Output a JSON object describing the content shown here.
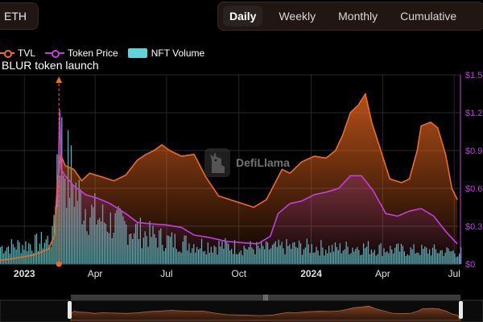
{
  "toolbar": {
    "chain": "ETH",
    "periods": [
      "Daily",
      "Weekly",
      "Monthly",
      "Cumulative"
    ],
    "active_period": "Daily"
  },
  "watermark": {
    "text": "DefiLlama"
  },
  "chart_data": {
    "type": "line",
    "title": "",
    "x_ticks": [
      {
        "label": "2023",
        "date": "2023-01-01"
      },
      {
        "label": "Apr",
        "date": "2023-04-01"
      },
      {
        "label": "Jul",
        "date": "2023-07-01"
      },
      {
        "label": "Oct",
        "date": "2023-10-01"
      },
      {
        "label": "2024",
        "date": "2024-01-01"
      },
      {
        "label": "Apr",
        "date": "2024-04-01"
      },
      {
        "label": "Jul",
        "date": "2024-07-01"
      }
    ],
    "xlim": [
      "2022-12-01",
      "2024-07-09"
    ],
    "y_right": {
      "ticks": [
        "$0",
        "$0.3",
        "$0.6",
        "$0.9",
        "$1.2",
        "$1.5"
      ],
      "values": [
        0,
        0.3,
        0.6,
        0.9,
        1.2,
        1.5
      ],
      "ylim": [
        0,
        1.5
      ]
    },
    "legend_position": "top-left",
    "series": [
      {
        "name": "TVL",
        "kind": "area",
        "color": "#f06a20",
        "axis": "hidden-left",
        "ylim": [
          0,
          1.0
        ],
        "points": [
          [
            "2022-12-01",
            0.02
          ],
          [
            "2022-12-20",
            0.03
          ],
          [
            "2023-01-15",
            0.05
          ],
          [
            "2023-02-01",
            0.08
          ],
          [
            "2023-02-08",
            0.15
          ],
          [
            "2023-02-12",
            0.42
          ],
          [
            "2023-02-16",
            0.58
          ],
          [
            "2023-02-22",
            0.52
          ],
          [
            "2023-03-05",
            0.5
          ],
          [
            "2023-03-15",
            0.44
          ],
          [
            "2023-03-25",
            0.48
          ],
          [
            "2023-04-10",
            0.46
          ],
          [
            "2023-04-25",
            0.44
          ],
          [
            "2023-05-10",
            0.47
          ],
          [
            "2023-05-25",
            0.55
          ],
          [
            "2023-06-05",
            0.58
          ],
          [
            "2023-06-15",
            0.6
          ],
          [
            "2023-06-25",
            0.63
          ],
          [
            "2023-07-05",
            0.6
          ],
          [
            "2023-07-20",
            0.57
          ],
          [
            "2023-08-05",
            0.58
          ],
          [
            "2023-08-20",
            0.46
          ],
          [
            "2023-09-05",
            0.36
          ],
          [
            "2023-09-20",
            0.34
          ],
          [
            "2023-10-05",
            0.32
          ],
          [
            "2023-10-20",
            0.3
          ],
          [
            "2023-11-05",
            0.34
          ],
          [
            "2023-11-15",
            0.42
          ],
          [
            "2023-11-25",
            0.5
          ],
          [
            "2023-12-05",
            0.48
          ],
          [
            "2023-12-20",
            0.54
          ],
          [
            "2024-01-05",
            0.57
          ],
          [
            "2024-01-20",
            0.56
          ],
          [
            "2024-02-01",
            0.6
          ],
          [
            "2024-02-10",
            0.68
          ],
          [
            "2024-02-20",
            0.8
          ],
          [
            "2024-03-01",
            0.84
          ],
          [
            "2024-03-10",
            0.9
          ],
          [
            "2024-03-18",
            0.75
          ],
          [
            "2024-03-28",
            0.62
          ],
          [
            "2024-04-10",
            0.45
          ],
          [
            "2024-04-25",
            0.43
          ],
          [
            "2024-05-05",
            0.45
          ],
          [
            "2024-05-15",
            0.6
          ],
          [
            "2024-05-20",
            0.73
          ],
          [
            "2024-06-01",
            0.75
          ],
          [
            "2024-06-10",
            0.72
          ],
          [
            "2024-06-20",
            0.58
          ],
          [
            "2024-06-28",
            0.4
          ],
          [
            "2024-07-05",
            0.34
          ]
        ]
      },
      {
        "name": "Token Price",
        "kind": "line",
        "color": "#c33fe0",
        "axis": "right",
        "points": [
          [
            "2023-02-13",
            0.45
          ],
          [
            "2023-02-14",
            0.95
          ],
          [
            "2023-02-15",
            1.22
          ],
          [
            "2023-02-17",
            0.75
          ],
          [
            "2023-02-22",
            0.7
          ],
          [
            "2023-03-05",
            0.62
          ],
          [
            "2023-03-20",
            0.55
          ],
          [
            "2023-04-05",
            0.52
          ],
          [
            "2023-04-20",
            0.48
          ],
          [
            "2023-05-10",
            0.4
          ],
          [
            "2023-05-25",
            0.33
          ],
          [
            "2023-06-10",
            0.32
          ],
          [
            "2023-07-01",
            0.31
          ],
          [
            "2023-07-20",
            0.29
          ],
          [
            "2023-08-05",
            0.23
          ],
          [
            "2023-08-25",
            0.21
          ],
          [
            "2023-09-15",
            0.18
          ],
          [
            "2023-10-05",
            0.17
          ],
          [
            "2023-10-25",
            0.16
          ],
          [
            "2023-11-10",
            0.22
          ],
          [
            "2023-11-20",
            0.4
          ],
          [
            "2023-12-05",
            0.48
          ],
          [
            "2023-12-20",
            0.5
          ],
          [
            "2024-01-05",
            0.55
          ],
          [
            "2024-01-20",
            0.57
          ],
          [
            "2024-02-05",
            0.6
          ],
          [
            "2024-02-20",
            0.7
          ],
          [
            "2024-03-05",
            0.7
          ],
          [
            "2024-03-20",
            0.58
          ],
          [
            "2024-04-05",
            0.4
          ],
          [
            "2024-04-20",
            0.38
          ],
          [
            "2024-05-05",
            0.42
          ],
          [
            "2024-05-20",
            0.44
          ],
          [
            "2024-06-05",
            0.38
          ],
          [
            "2024-06-20",
            0.26
          ],
          [
            "2024-07-05",
            0.16
          ]
        ]
      },
      {
        "name": "NFT Volume",
        "kind": "bars",
        "color": "#5ed3d8",
        "axis": "hidden-right",
        "ylim": [
          0,
          1.0
        ],
        "points": [
          [
            "2022-12-01",
            0.1
          ],
          [
            "2023-01-15",
            0.12
          ],
          [
            "2023-02-05",
            0.15
          ],
          [
            "2023-02-14",
            0.85
          ],
          [
            "2023-02-18",
            0.62
          ],
          [
            "2023-02-25",
            0.55
          ],
          [
            "2023-03-10",
            0.4
          ],
          [
            "2023-03-25",
            0.3
          ],
          [
            "2023-04-15",
            0.25
          ],
          [
            "2023-05-10",
            0.22
          ],
          [
            "2023-06-01",
            0.18
          ],
          [
            "2023-07-01",
            0.14
          ],
          [
            "2023-08-01",
            0.12
          ],
          [
            "2023-09-01",
            0.11
          ],
          [
            "2023-10-01",
            0.1
          ],
          [
            "2023-11-01",
            0.09
          ],
          [
            "2023-12-01",
            0.1
          ],
          [
            "2024-01-01",
            0.1
          ],
          [
            "2024-02-01",
            0.09
          ],
          [
            "2024-03-01",
            0.1
          ],
          [
            "2024-04-01",
            0.09
          ],
          [
            "2024-05-01",
            0.08
          ],
          [
            "2024-06-01",
            0.08
          ],
          [
            "2024-07-05",
            0.07
          ]
        ]
      }
    ],
    "annotations": [
      {
        "label": "BLUR token launch",
        "date": "2023-02-14"
      }
    ]
  }
}
